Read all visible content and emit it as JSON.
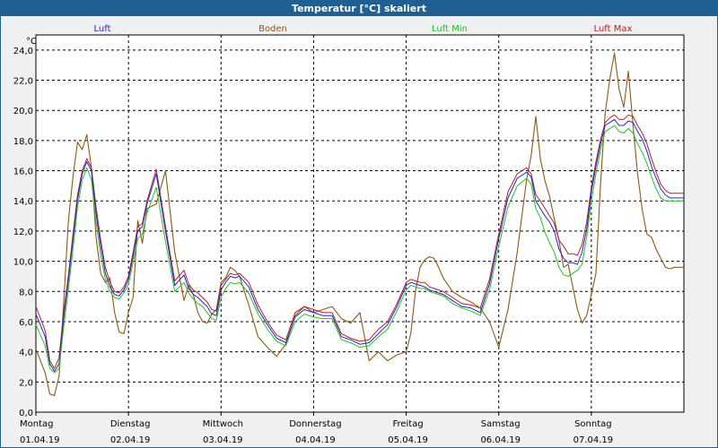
{
  "window": {
    "title": "Temperatur [°C] skaliert"
  },
  "chart_data": {
    "type": "line",
    "title": "Temperatur [°C] skaliert",
    "ylabel": "°C",
    "xlabel": "",
    "ylim": [
      0,
      25
    ],
    "xlim": [
      0,
      7
    ],
    "grid": true,
    "yticks": [
      0,
      2,
      4,
      6,
      8,
      10,
      12,
      14,
      16,
      18,
      20,
      22,
      24
    ],
    "ytick_labels": [
      "0,0",
      "2,0",
      "4,0",
      "6,0",
      "8,0",
      "10,0",
      "12,0",
      "14,0",
      "16,0",
      "18,0",
      "20,0",
      "22,0",
      "24,0"
    ],
    "days": [
      {
        "day": "Montag",
        "date": "01.04.19"
      },
      {
        "day": "Dienstag",
        "date": "02.04.19"
      },
      {
        "day": "Mittwoch",
        "date": "03.04.19"
      },
      {
        "day": "Donnerstag",
        "date": "04.04.19"
      },
      {
        "day": "Freitag",
        "date": "05.04.19"
      },
      {
        "day": "Samstag",
        "date": "06.04.19"
      },
      {
        "day": "Sonntag",
        "date": "07.04.19"
      }
    ],
    "legend": [
      {
        "name": "Luft",
        "color": "#2a24c8"
      },
      {
        "name": "Boden",
        "color": "#8b5a18"
      },
      {
        "name": "Luft Min",
        "color": "#26c026"
      },
      {
        "name": "Luft Max",
        "color": "#b0202e"
      }
    ],
    "series": [
      {
        "name": "Boden",
        "color": "#8b5a18",
        "x": [
          0,
          0.1,
          0.15,
          0.2,
          0.25,
          0.3,
          0.35,
          0.4,
          0.45,
          0.5,
          0.55,
          0.6,
          0.65,
          0.7,
          0.75,
          0.8,
          0.85,
          0.9,
          0.95,
          1.0,
          1.05,
          1.1,
          1.15,
          1.2,
          1.3,
          1.4,
          1.5,
          1.6,
          1.65,
          1.7,
          1.75,
          1.8,
          1.85,
          1.9,
          1.95,
          2.0,
          2.05,
          2.1,
          2.15,
          2.2,
          2.3,
          2.4,
          2.5,
          2.6,
          2.7,
          2.8,
          2.9,
          3.0,
          3.1,
          3.2,
          3.3,
          3.4,
          3.5,
          3.6,
          3.7,
          3.8,
          3.9,
          4.0,
          4.05,
          4.1,
          4.15,
          4.2,
          4.25,
          4.3,
          4.35,
          4.4,
          4.5,
          4.6,
          4.7,
          4.8,
          4.9,
          5.0,
          5.1,
          5.2,
          5.3,
          5.35,
          5.4,
          5.45,
          5.5,
          5.55,
          5.6,
          5.65,
          5.7,
          5.75,
          5.8,
          5.85,
          5.9,
          5.95,
          6.0,
          6.05,
          6.1,
          6.15,
          6.2,
          6.25,
          6.3,
          6.35,
          6.4,
          6.45,
          6.5,
          6.55,
          6.6,
          6.65,
          6.7,
          6.75,
          6.8,
          6.85,
          6.9,
          6.95,
          7.0
        ],
        "y": [
          4.2,
          2.6,
          1.2,
          1.1,
          2.4,
          7.2,
          12.6,
          15.6,
          17.9,
          17.4,
          18.4,
          16.2,
          11.6,
          9.2,
          8.6,
          8.9,
          6.6,
          5.3,
          5.2,
          6.6,
          7.6,
          12.7,
          11.2,
          13.5,
          13.8,
          16.0,
          10.6,
          7.4,
          8.4,
          7.8,
          6.6,
          6.0,
          5.9,
          6.5,
          6.8,
          8.6,
          8.9,
          9.6,
          9.4,
          9.0,
          7.1,
          5.0,
          4.3,
          3.7,
          4.5,
          6.4,
          7.0,
          6.6,
          6.8,
          7.0,
          6.2,
          5.9,
          6.6,
          3.4,
          4.0,
          3.4,
          3.8,
          4.0,
          5.2,
          8.0,
          9.6,
          10.1,
          10.3,
          10.2,
          9.6,
          8.9,
          8.0,
          7.6,
          7.3,
          6.9,
          6.0,
          4.3,
          6.8,
          10.6,
          15.4,
          17.0,
          19.6,
          16.8,
          15.3,
          14.3,
          12.8,
          11.4,
          9.6,
          9.8,
          8.3,
          6.8,
          5.9,
          6.4,
          7.8,
          9.2,
          15.2,
          19.8,
          22.1,
          23.8,
          21.4,
          20.2,
          22.6,
          19.0,
          15.8,
          13.4,
          11.8,
          11.6,
          10.8,
          10.2,
          9.6,
          9.5,
          9.6,
          9.6,
          9.6
        ],
        "lw": 1.1
      },
      {
        "name": "Luft Max",
        "color": "#b0202e",
        "x": [
          0,
          0.1,
          0.15,
          0.2,
          0.25,
          0.3,
          0.35,
          0.4,
          0.45,
          0.5,
          0.55,
          0.6,
          0.65,
          0.7,
          0.75,
          0.8,
          0.85,
          0.9,
          0.95,
          1.0,
          1.05,
          1.1,
          1.15,
          1.2,
          1.3,
          1.4,
          1.5,
          1.6,
          1.65,
          1.7,
          1.75,
          1.8,
          1.85,
          1.9,
          1.95,
          2.0,
          2.05,
          2.1,
          2.15,
          2.2,
          2.3,
          2.4,
          2.5,
          2.6,
          2.7,
          2.8,
          2.9,
          3.0,
          3.1,
          3.2,
          3.3,
          3.4,
          3.5,
          3.6,
          3.7,
          3.8,
          3.9,
          4.0,
          4.05,
          4.1,
          4.15,
          4.2,
          4.25,
          4.3,
          4.35,
          4.4,
          4.5,
          4.6,
          4.7,
          4.8,
          4.9,
          5.0,
          5.1,
          5.2,
          5.3,
          5.35,
          5.4,
          5.45,
          5.5,
          5.55,
          5.6,
          5.65,
          5.7,
          5.75,
          5.8,
          5.85,
          5.9,
          5.95,
          6.0,
          6.05,
          6.1,
          6.15,
          6.2,
          6.25,
          6.3,
          6.35,
          6.4,
          6.45,
          6.5,
          6.55,
          6.6,
          6.65,
          6.7,
          6.75,
          6.8,
          6.85,
          6.9,
          6.95,
          7.0
        ],
        "y": [
          7.0,
          5.4,
          3.4,
          2.9,
          3.6,
          6.6,
          9.0,
          11.8,
          14.4,
          16.0,
          16.8,
          16.2,
          13.6,
          11.4,
          9.6,
          8.6,
          8.0,
          7.9,
          8.3,
          9.0,
          10.6,
          12.3,
          12.5,
          14.0,
          16.1,
          12.3,
          8.7,
          9.4,
          8.5,
          8.1,
          7.9,
          7.6,
          7.3,
          6.8,
          6.7,
          8.4,
          8.8,
          9.2,
          9.1,
          9.2,
          8.6,
          7.1,
          6.0,
          5.1,
          4.8,
          6.6,
          7.0,
          6.8,
          6.6,
          6.6,
          5.2,
          4.9,
          4.7,
          4.8,
          5.5,
          6.0,
          7.2,
          8.6,
          8.8,
          8.7,
          8.6,
          8.6,
          8.3,
          8.2,
          8.1,
          8.0,
          7.6,
          7.2,
          7.1,
          6.9,
          8.8,
          11.8,
          14.6,
          15.8,
          16.2,
          15.8,
          14.4,
          14.0,
          13.5,
          13.0,
          12.5,
          11.4,
          11.0,
          10.5,
          10.5,
          10.4,
          11.1,
          12.6,
          14.9,
          16.6,
          18.1,
          19.2,
          19.5,
          19.7,
          19.4,
          19.4,
          19.7,
          19.6,
          19.0,
          18.5,
          17.8,
          16.8,
          15.9,
          15.1,
          14.7,
          14.5,
          14.5,
          14.5,
          14.5
        ],
        "lw": 1.0
      },
      {
        "name": "Luft",
        "color": "#2a24c8",
        "x": [
          0,
          0.1,
          0.15,
          0.2,
          0.25,
          0.3,
          0.35,
          0.4,
          0.45,
          0.5,
          0.55,
          0.6,
          0.65,
          0.7,
          0.75,
          0.8,
          0.85,
          0.9,
          0.95,
          1.0,
          1.05,
          1.1,
          1.15,
          1.2,
          1.3,
          1.4,
          1.5,
          1.6,
          1.65,
          1.7,
          1.75,
          1.8,
          1.85,
          1.9,
          1.95,
          2.0,
          2.05,
          2.1,
          2.15,
          2.2,
          2.3,
          2.4,
          2.5,
          2.6,
          2.7,
          2.8,
          2.9,
          3.0,
          3.1,
          3.2,
          3.3,
          3.4,
          3.5,
          3.6,
          3.7,
          3.8,
          3.9,
          4.0,
          4.05,
          4.1,
          4.15,
          4.2,
          4.25,
          4.3,
          4.35,
          4.4,
          4.5,
          4.6,
          4.7,
          4.8,
          4.9,
          5.0,
          5.1,
          5.2,
          5.3,
          5.35,
          5.4,
          5.45,
          5.5,
          5.55,
          5.6,
          5.65,
          5.7,
          5.75,
          5.8,
          5.85,
          5.9,
          5.95,
          6.0,
          6.05,
          6.1,
          6.15,
          6.2,
          6.25,
          6.3,
          6.35,
          6.4,
          6.45,
          6.5,
          6.55,
          6.6,
          6.65,
          6.7,
          6.75,
          6.8,
          6.85,
          6.9,
          6.95,
          7.0
        ],
        "y": [
          6.5,
          5.0,
          3.2,
          2.7,
          3.2,
          6.2,
          8.7,
          11.4,
          14.1,
          15.8,
          16.6,
          16.0,
          13.2,
          11.0,
          9.2,
          8.3,
          7.8,
          7.7,
          8.1,
          8.8,
          10.3,
          12.0,
          12.3,
          13.8,
          15.8,
          12.0,
          8.4,
          9.1,
          8.2,
          7.8,
          7.6,
          7.3,
          7.0,
          6.5,
          6.4,
          8.1,
          8.6,
          9.0,
          8.9,
          9.0,
          8.3,
          6.8,
          5.8,
          4.9,
          4.6,
          6.3,
          6.8,
          6.6,
          6.4,
          6.4,
          5.0,
          4.8,
          4.5,
          4.6,
          5.2,
          5.8,
          7.0,
          8.4,
          8.6,
          8.5,
          8.4,
          8.3,
          8.1,
          8.0,
          7.9,
          7.8,
          7.4,
          7.0,
          6.9,
          6.6,
          8.5,
          11.5,
          14.2,
          15.5,
          15.9,
          15.6,
          14.0,
          13.5,
          13.0,
          12.6,
          12.0,
          10.8,
          10.2,
          9.9,
          9.9,
          9.8,
          10.6,
          12.1,
          14.6,
          16.3,
          17.8,
          19.0,
          19.2,
          19.4,
          19.0,
          19.0,
          19.3,
          19.2,
          18.6,
          18.1,
          17.3,
          16.3,
          15.5,
          14.8,
          14.4,
          14.2,
          14.2,
          14.2,
          14.2
        ],
        "lw": 1.0
      },
      {
        "name": "Luft Min",
        "color": "#26c026",
        "x": [
          0,
          0.1,
          0.15,
          0.2,
          0.25,
          0.3,
          0.35,
          0.4,
          0.45,
          0.5,
          0.55,
          0.6,
          0.65,
          0.7,
          0.75,
          0.8,
          0.85,
          0.9,
          0.95,
          1.0,
          1.05,
          1.1,
          1.15,
          1.2,
          1.3,
          1.4,
          1.5,
          1.6,
          1.65,
          1.7,
          1.75,
          1.8,
          1.85,
          1.9,
          1.95,
          2.0,
          2.05,
          2.1,
          2.15,
          2.2,
          2.3,
          2.4,
          2.5,
          2.6,
          2.7,
          2.8,
          2.9,
          3.0,
          3.1,
          3.2,
          3.3,
          3.4,
          3.5,
          3.6,
          3.7,
          3.8,
          3.9,
          4.0,
          4.05,
          4.1,
          4.15,
          4.2,
          4.25,
          4.3,
          4.35,
          4.4,
          4.5,
          4.6,
          4.7,
          4.8,
          4.9,
          5.0,
          5.1,
          5.2,
          5.3,
          5.35,
          5.4,
          5.45,
          5.5,
          5.55,
          5.6,
          5.65,
          5.7,
          5.75,
          5.8,
          5.85,
          5.9,
          5.95,
          6.0,
          6.05,
          6.1,
          6.15,
          6.2,
          6.25,
          6.3,
          6.35,
          6.4,
          6.45,
          6.5,
          6.55,
          6.6,
          6.65,
          6.7,
          6.75,
          6.8,
          6.85,
          6.9,
          6.95,
          7.0
        ],
        "y": [
          5.8,
          4.4,
          2.9,
          2.6,
          2.9,
          5.6,
          8.1,
          10.8,
          13.6,
          15.4,
          16.2,
          15.4,
          12.6,
          10.4,
          8.8,
          8.0,
          7.6,
          7.5,
          7.9,
          8.5,
          9.9,
          11.5,
          11.8,
          13.2,
          14.9,
          11.3,
          8.0,
          8.6,
          7.9,
          7.5,
          7.2,
          7.0,
          6.6,
          6.2,
          6.1,
          7.6,
          8.2,
          8.6,
          8.5,
          8.6,
          7.9,
          6.5,
          5.5,
          4.7,
          4.4,
          6.0,
          6.5,
          6.3,
          6.2,
          6.2,
          4.8,
          4.6,
          4.3,
          4.4,
          5.0,
          5.5,
          6.7,
          8.1,
          8.4,
          8.3,
          8.2,
          8.2,
          8.0,
          7.9,
          7.8,
          7.7,
          7.2,
          6.9,
          6.7,
          6.4,
          8.1,
          11.0,
          13.6,
          15.0,
          15.5,
          15.1,
          13.5,
          12.9,
          11.9,
          11.2,
          10.6,
          9.6,
          9.1,
          9.0,
          9.2,
          9.4,
          9.8,
          11.6,
          14.0,
          15.8,
          17.4,
          18.6,
          18.8,
          19.0,
          18.6,
          18.5,
          18.8,
          18.5,
          17.8,
          17.2,
          16.5,
          15.6,
          14.8,
          14.2,
          14.0,
          14.0,
          14.0,
          14.0,
          14.0
        ],
        "lw": 1.0
      }
    ]
  }
}
